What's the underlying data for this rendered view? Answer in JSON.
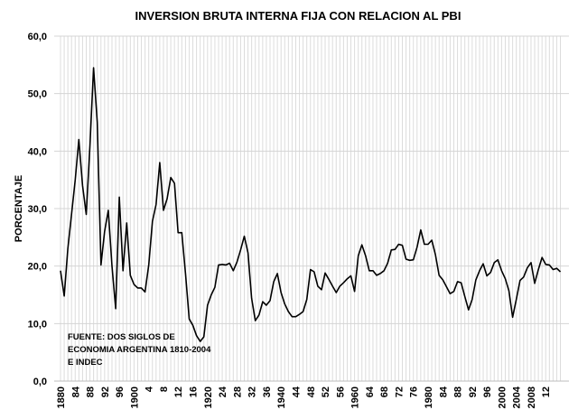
{
  "chart_data": {
    "type": "line",
    "title": "INVERSION BRUTA INTERNA FIJA CON RELACION AL PBI",
    "xlabel": "",
    "ylabel": "PORCENTAJE",
    "ylim": [
      0,
      60
    ],
    "yticks": [
      "0,0",
      "10,0",
      "20,0",
      "30,0",
      "40,0",
      "50,0",
      "60,0"
    ],
    "ytick_values": [
      0,
      10,
      20,
      30,
      40,
      50,
      60
    ],
    "grid": true,
    "annotation": [
      "FUENTE: DOS SIGLOS DE",
      "ECONOMIA ARGENTINA 1810-2004",
      "E INDEC"
    ],
    "xtick_years": [
      1880,
      1884,
      1888,
      1892,
      1896,
      1900,
      1904,
      1908,
      1912,
      1916,
      1920,
      1924,
      1928,
      1932,
      1936,
      1940,
      1944,
      1948,
      1952,
      1956,
      1960,
      1964,
      1968,
      1972,
      1976,
      1980,
      1984,
      1988,
      1992,
      1996,
      2000,
      2004,
      2008,
      2012
    ],
    "xtick_labels": [
      "1880",
      "84",
      "88",
      "92",
      "96",
      "1900",
      "4",
      "8",
      "12",
      "16",
      "1920",
      "24",
      "28",
      "32",
      "36",
      "1940",
      "44",
      "48",
      "52",
      "56",
      "1960",
      "64",
      "68",
      "72",
      "76",
      "1980",
      "84",
      "88",
      "92",
      "96",
      "2000",
      "2004",
      "2008",
      "12"
    ],
    "x_start": 1880,
    "series": [
      {
        "name": "Inversion bruta interna fija / PBI",
        "color": "#000000",
        "values": [
          19.2,
          14.8,
          23,
          29,
          35,
          42,
          34,
          29,
          41,
          54.5,
          45,
          20.2,
          26,
          29.7,
          20,
          12.6,
          32,
          19.2,
          27.5,
          18.4,
          16.8,
          16.2,
          16.2,
          15.5,
          20.2,
          27.8,
          30.7,
          38,
          29.7,
          31.7,
          35.4,
          34.4,
          25.8,
          25.8,
          18.7,
          10.8,
          9.7,
          7.9,
          6.9,
          7.7,
          13.2,
          15,
          16.3,
          20.2,
          20.3,
          20.2,
          20.5,
          19.2,
          20.7,
          22.8,
          25.2,
          22.3,
          14.4,
          10.5,
          11.5,
          13.8,
          13.2,
          14,
          17.3,
          18.7,
          15.4,
          13.4,
          12.1,
          11.2,
          11.2,
          11.6,
          12.1,
          14.2,
          19.4,
          19,
          16.5,
          15.9,
          18.8,
          17.7,
          16.5,
          15.4,
          16.5,
          17.1,
          17.8,
          18.3,
          15.6,
          21.8,
          23.7,
          21.8,
          19.2,
          19.2,
          18.4,
          18.7,
          19.2,
          20.5,
          22.8,
          22.9,
          23.8,
          23.6,
          21.2,
          21,
          21.1,
          23.3,
          26.3,
          23.8,
          23.8,
          24.5,
          22,
          18.4,
          17.6,
          16.4,
          15.2,
          15.6,
          17.3,
          17.1,
          14.7,
          12.4,
          14.2,
          17.6,
          19.2,
          20.4,
          18.3,
          18.9,
          20.6,
          21.1,
          19.2,
          17.8,
          15.7,
          11.1,
          14.2,
          17.5,
          18.1,
          19.7,
          20.6,
          17,
          19.4,
          21.5,
          20.3,
          20.2,
          19.4,
          19.6,
          19
        ]
      }
    ]
  }
}
